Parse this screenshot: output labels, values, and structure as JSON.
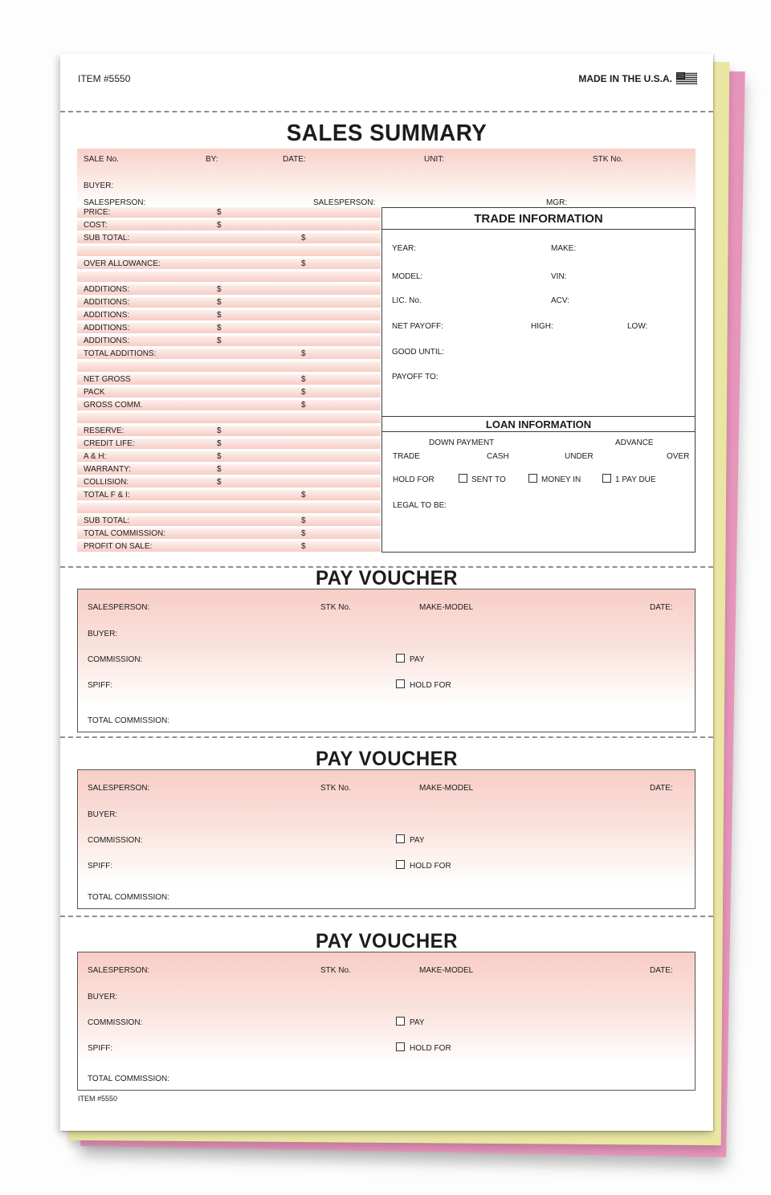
{
  "product": {
    "item_number": "ITEM #5550",
    "made_in_label": "MADE IN THE U.S.A.",
    "item_number_footer": "ITEM #5550"
  },
  "currency_symbol": "$",
  "colors": {
    "form_pink_dark": "#f6cdc5",
    "form_pink_light": "#fdf0ec",
    "copy_yellow": "#e9e6a2",
    "copy_pink": "#e795bb"
  },
  "sales_summary": {
    "title": "SALES SUMMARY",
    "top_fields": {
      "sale_no": "SALE No.",
      "by": "BY:",
      "date": "DATE:",
      "unit": "UNIT:",
      "stk_no": "STK No.",
      "buyer": "BUYER:",
      "salesperson_left": "SALESPERSON:",
      "salesperson_center": "SALESPERSON:",
      "mgr": "MGR:"
    },
    "left_rows": [
      {
        "label": "PRICE:",
        "dollar": "mid"
      },
      {
        "label": "COST:",
        "dollar": "mid"
      },
      {
        "label": "SUB TOTAL:",
        "dollar": "right"
      },
      {
        "label": "",
        "dollar": ""
      },
      {
        "label": "OVER ALLOWANCE:",
        "dollar": "right"
      },
      {
        "label": "",
        "dollar": ""
      },
      {
        "label": "ADDITIONS:",
        "dollar": "mid"
      },
      {
        "label": "ADDITIONS:",
        "dollar": "mid"
      },
      {
        "label": "ADDITIONS:",
        "dollar": "mid"
      },
      {
        "label": "ADDITIONS:",
        "dollar": "mid"
      },
      {
        "label": "ADDITIONS:",
        "dollar": "mid"
      },
      {
        "label": "TOTAL ADDITIONS:",
        "dollar": "right"
      },
      {
        "label": "",
        "dollar": ""
      },
      {
        "label": "NET GROSS",
        "dollar": "right"
      },
      {
        "label": "PACK",
        "dollar": "right"
      },
      {
        "label": "GROSS COMM.",
        "dollar": "right"
      },
      {
        "label": "",
        "dollar": ""
      },
      {
        "label": "RESERVE:",
        "dollar": "mid"
      },
      {
        "label": "CREDIT LIFE:",
        "dollar": "mid"
      },
      {
        "label": "A & H:",
        "dollar": "mid"
      },
      {
        "label": "WARRANTY:",
        "dollar": "mid"
      },
      {
        "label": "COLLISION:",
        "dollar": "mid"
      },
      {
        "label": "TOTAL F & I:",
        "dollar": "right"
      },
      {
        "label": "",
        "dollar": ""
      },
      {
        "label": "SUB TOTAL:",
        "dollar": "right"
      },
      {
        "label": "TOTAL COMMISSION:",
        "dollar": "right"
      },
      {
        "label": "PROFIT ON SALE:",
        "dollar": "right"
      }
    ],
    "trade_information": {
      "title": "TRADE INFORMATION",
      "year": "YEAR:",
      "make": "MAKE:",
      "model": "MODEL:",
      "vin": "VIN:",
      "lic_no": "LIC. No.",
      "acv": "ACV:",
      "net_payoff": "NET PAYOFF:",
      "high": "HIGH:",
      "low": "LOW:",
      "good_until": "GOOD UNTIL:",
      "payoff_to": "PAYOFF TO:"
    },
    "loan_information": {
      "title": "LOAN INFORMATION",
      "down_payment": "DOWN PAYMENT",
      "advance": "ADVANCE",
      "trade": "TRADE",
      "cash": "CASH",
      "under": "UNDER",
      "over": "OVER",
      "hold_for": "HOLD FOR",
      "checkbox_sent_to": "SENT TO",
      "checkbox_money_in": "MONEY IN",
      "checkbox_one_pay_due": "1 PAY DUE",
      "legal_to_be": "LEGAL TO BE:"
    }
  },
  "pay_vouchers": [
    {
      "title": "PAY VOUCHER",
      "salesperson": "SALESPERSON:",
      "stk_no": "STK No.",
      "make_model": "MAKE-MODEL",
      "date": "DATE:",
      "buyer": "BUYER:",
      "commission": "COMMISSION:",
      "checkbox_pay": "PAY",
      "spiff": "SPIFF:",
      "checkbox_hold_for": "HOLD FOR",
      "total_commission": "TOTAL COMMISSION:"
    },
    {
      "title": "PAY VOUCHER",
      "salesperson": "SALESPERSON:",
      "stk_no": "STK No.",
      "make_model": "MAKE-MODEL",
      "date": "DATE:",
      "buyer": "BUYER:",
      "commission": "COMMISSION:",
      "checkbox_pay": "PAY",
      "spiff": "SPIFF:",
      "checkbox_hold_for": "HOLD FOR",
      "total_commission": "TOTAL COMMISSION:"
    },
    {
      "title": "PAY VOUCHER",
      "salesperson": "SALESPERSON:",
      "stk_no": "STK No.",
      "make_model": "MAKE-MODEL",
      "date": "DATE:",
      "buyer": "BUYER:",
      "commission": "COMMISSION:",
      "checkbox_pay": "PAY",
      "spiff": "SPIFF:",
      "checkbox_hold_for": "HOLD FOR",
      "total_commission": "TOTAL COMMISSION:"
    }
  ]
}
